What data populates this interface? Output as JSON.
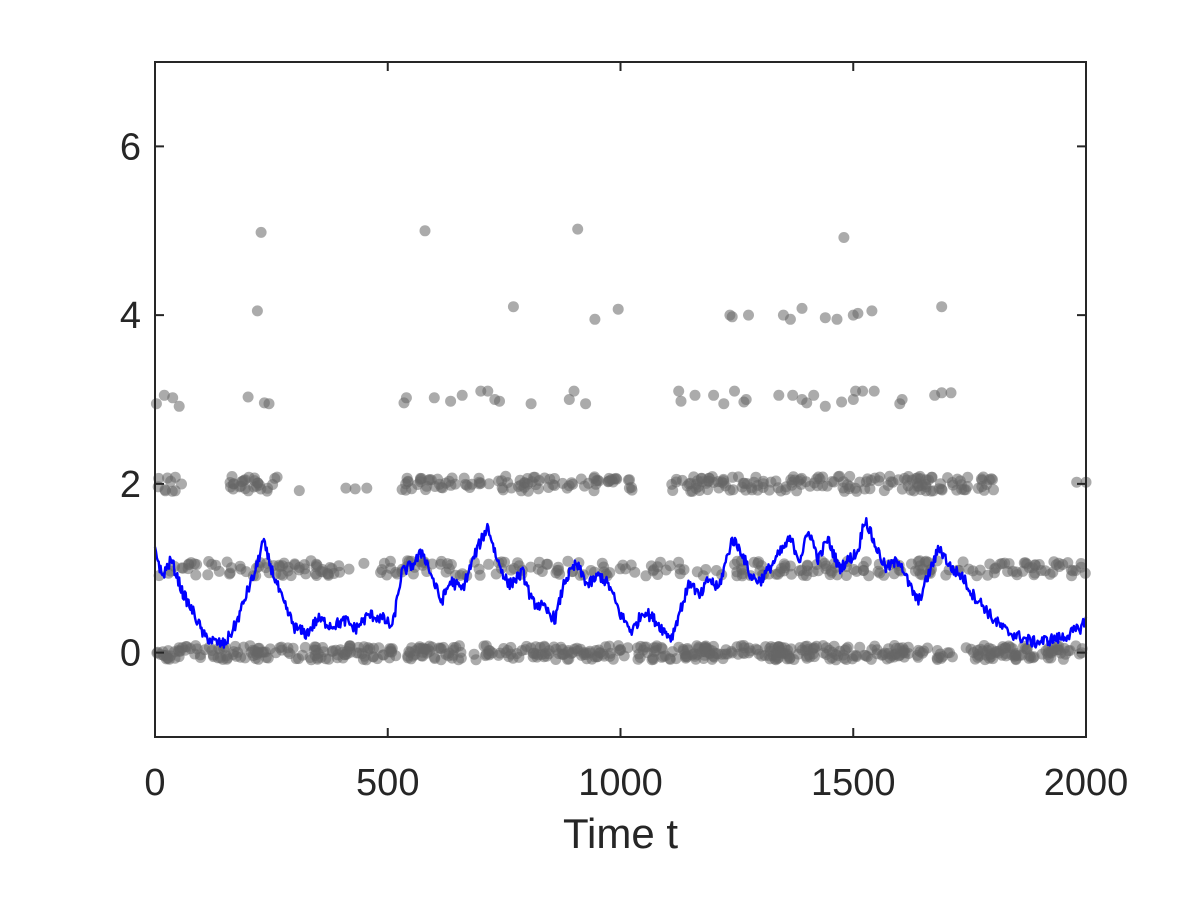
{
  "chart_data": {
    "type": "scatter",
    "title": "",
    "xlabel": "Time t",
    "ylabel": "",
    "xlim": [
      0,
      2000
    ],
    "ylim": [
      -1,
      7
    ],
    "xticks": [
      0,
      500,
      1000,
      1500,
      2000
    ],
    "yticks": [
      0,
      2,
      4,
      6
    ],
    "grid": false,
    "legend": "none",
    "colors": {
      "points": "#666666",
      "line": "#0000ff",
      "axes": "#262626"
    },
    "series": [
      {
        "kind": "points",
        "points": [
          [
            3,
            2.95
          ],
          [
            20,
            3.05
          ],
          [
            38,
            3.02
          ],
          [
            52,
            2.92
          ],
          [
            200,
            3.03
          ],
          [
            235,
            2.96
          ],
          [
            245,
            2.95
          ],
          [
            535,
            2.96
          ],
          [
            540,
            3.02
          ],
          [
            600,
            3.02
          ],
          [
            635,
            2.98
          ],
          [
            660,
            3.05
          ],
          [
            700,
            3.1
          ],
          [
            715,
            3.1
          ],
          [
            730,
            3.0
          ],
          [
            740,
            2.98
          ],
          [
            808,
            2.95
          ],
          [
            890,
            3.0
          ],
          [
            900,
            3.1
          ],
          [
            925,
            2.95
          ],
          [
            1125,
            3.1
          ],
          [
            1130,
            2.98
          ],
          [
            1160,
            3.05
          ],
          [
            1200,
            3.05
          ],
          [
            1222,
            2.95
          ],
          [
            1245,
            3.1
          ],
          [
            1265,
            2.97
          ],
          [
            1270,
            3.0
          ],
          [
            1340,
            3.05
          ],
          [
            1370,
            3.05
          ],
          [
            1390,
            3.0
          ],
          [
            1400,
            2.96
          ],
          [
            1415,
            3.05
          ],
          [
            1440,
            2.92
          ],
          [
            1475,
            2.97
          ],
          [
            1500,
            3.0
          ],
          [
            1505,
            3.1
          ],
          [
            1520,
            3.1
          ],
          [
            1545,
            3.1
          ],
          [
            1600,
            2.95
          ],
          [
            1605,
            3.0
          ],
          [
            1675,
            3.05
          ],
          [
            1690,
            3.08
          ],
          [
            1710,
            3.08
          ],
          [
            220,
            4.05
          ],
          [
            770,
            4.1
          ],
          [
            945,
            3.95
          ],
          [
            995,
            4.07
          ],
          [
            1235,
            4.0
          ],
          [
            1240,
            3.98
          ],
          [
            1275,
            4.0
          ],
          [
            1350,
            4.0
          ],
          [
            1365,
            3.95
          ],
          [
            1390,
            4.08
          ],
          [
            1440,
            3.97
          ],
          [
            1465,
            3.95
          ],
          [
            1500,
            4.0
          ],
          [
            1510,
            4.02
          ],
          [
            1540,
            4.05
          ],
          [
            1690,
            4.1
          ],
          [
            228,
            4.98
          ],
          [
            580,
            5.0
          ],
          [
            908,
            5.02
          ],
          [
            1480,
            4.92
          ],
          [
            310,
            1.92
          ],
          [
            410,
            1.95
          ],
          [
            430,
            1.94
          ],
          [
            455,
            1.95
          ],
          [
            1980,
            2.02
          ],
          [
            2000,
            2.02
          ]
        ],
        "bands": [
          {
            "level": 0,
            "x_start": 0,
            "x_end": 2000,
            "count": 560,
            "spread": 0.085
          },
          {
            "level": 1,
            "x_start": 0,
            "x_end": 2000,
            "count": 300,
            "spread": 0.09
          },
          {
            "level": 2,
            "x_start": 0,
            "x_end": 60,
            "count": 10,
            "spread": 0.09
          },
          {
            "level": 2,
            "x_start": 160,
            "x_end": 270,
            "count": 28,
            "spread": 0.09
          },
          {
            "level": 2,
            "x_start": 530,
            "x_end": 1030,
            "count": 95,
            "spread": 0.09
          },
          {
            "level": 2,
            "x_start": 1110,
            "x_end": 1810,
            "count": 160,
            "spread": 0.09
          }
        ]
      },
      {
        "kind": "line",
        "knots": [
          [
            0,
            1.25
          ],
          [
            15,
            0.9
          ],
          [
            35,
            1.1
          ],
          [
            60,
            0.7
          ],
          [
            85,
            0.45
          ],
          [
            105,
            0.2
          ],
          [
            130,
            0.12
          ],
          [
            150,
            0.1
          ],
          [
            175,
            0.35
          ],
          [
            200,
            0.75
          ],
          [
            215,
            0.95
          ],
          [
            232,
            1.32
          ],
          [
            250,
            1.0
          ],
          [
            275,
            0.6
          ],
          [
            300,
            0.3
          ],
          [
            325,
            0.22
          ],
          [
            350,
            0.4
          ],
          [
            380,
            0.32
          ],
          [
            410,
            0.38
          ],
          [
            430,
            0.28
          ],
          [
            460,
            0.45
          ],
          [
            490,
            0.4
          ],
          [
            510,
            0.3
          ],
          [
            530,
            0.95
          ],
          [
            555,
            1.05
          ],
          [
            575,
            1.2
          ],
          [
            595,
            0.9
          ],
          [
            615,
            0.6
          ],
          [
            635,
            0.85
          ],
          [
            660,
            0.75
          ],
          [
            690,
            1.2
          ],
          [
            715,
            1.5
          ],
          [
            735,
            1.1
          ],
          [
            760,
            0.8
          ],
          [
            790,
            0.95
          ],
          [
            810,
            0.6
          ],
          [
            830,
            0.55
          ],
          [
            860,
            0.4
          ],
          [
            880,
            0.85
          ],
          [
            905,
            1.05
          ],
          [
            930,
            0.8
          ],
          [
            955,
            0.92
          ],
          [
            975,
            0.8
          ],
          [
            1000,
            0.45
          ],
          [
            1025,
            0.25
          ],
          [
            1050,
            0.5
          ],
          [
            1075,
            0.38
          ],
          [
            1095,
            0.25
          ],
          [
            1110,
            0.18
          ],
          [
            1125,
            0.45
          ],
          [
            1150,
            0.85
          ],
          [
            1170,
            0.65
          ],
          [
            1190,
            0.88
          ],
          [
            1210,
            0.75
          ],
          [
            1240,
            1.35
          ],
          [
            1260,
            1.2
          ],
          [
            1280,
            0.9
          ],
          [
            1300,
            0.85
          ],
          [
            1320,
            1.0
          ],
          [
            1345,
            1.2
          ],
          [
            1365,
            1.35
          ],
          [
            1385,
            1.1
          ],
          [
            1405,
            1.45
          ],
          [
            1425,
            1.1
          ],
          [
            1445,
            1.35
          ],
          [
            1470,
            1.0
          ],
          [
            1490,
            1.1
          ],
          [
            1510,
            1.2
          ],
          [
            1525,
            1.6
          ],
          [
            1545,
            1.3
          ],
          [
            1570,
            1.0
          ],
          [
            1600,
            1.1
          ],
          [
            1620,
            0.8
          ],
          [
            1640,
            0.6
          ],
          [
            1660,
            0.9
          ],
          [
            1685,
            1.25
          ],
          [
            1710,
            1.0
          ],
          [
            1735,
            0.9
          ],
          [
            1755,
            0.7
          ],
          [
            1780,
            0.55
          ],
          [
            1800,
            0.4
          ],
          [
            1830,
            0.25
          ],
          [
            1860,
            0.18
          ],
          [
            1890,
            0.12
          ],
          [
            1920,
            0.15
          ],
          [
            1950,
            0.18
          ],
          [
            1975,
            0.25
          ],
          [
            1990,
            0.3
          ],
          [
            2000,
            0.42
          ]
        ]
      }
    ]
  }
}
